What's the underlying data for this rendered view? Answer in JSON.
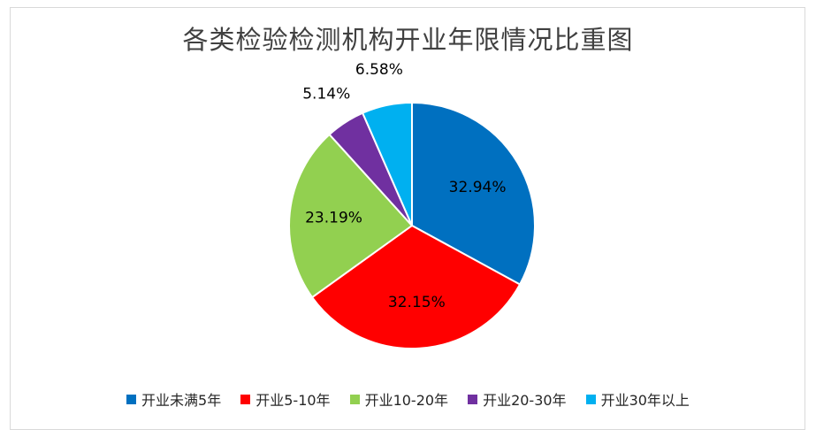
{
  "chart_data": {
    "type": "pie",
    "title": "各类检验检测机构开业年限情况比重图",
    "categories": [
      "开业未满5年",
      "开业5-10年",
      "开业10-20年",
      "开业20-30年",
      "开业30年以上"
    ],
    "values": [
      32.94,
      32.15,
      23.19,
      5.14,
      6.58
    ],
    "labels": [
      "32.94%",
      "32.15%",
      "23.19%",
      "5.14%",
      "6.58%"
    ],
    "colors": [
      "#0070C0",
      "#FF0000",
      "#92D050",
      "#7030A0",
      "#00B0F0"
    ],
    "legend_position": "bottom"
  }
}
